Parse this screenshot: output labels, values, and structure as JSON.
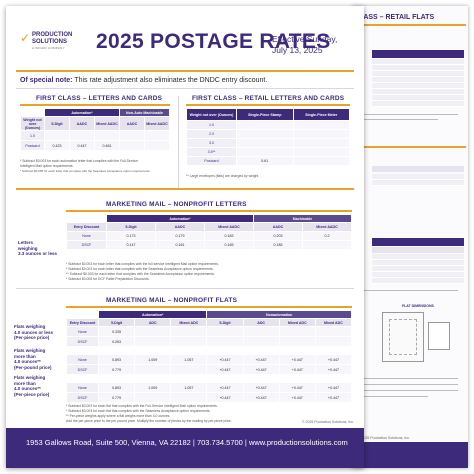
{
  "back_page": {
    "section_title": "CLASS – RETAIL FLATS",
    "flat_dimensions_label": "FLAT DIMENSIONS",
    "copyright": "© 2025 Production Solutions, Inc."
  },
  "logo": {
    "line1": "PRODUCTION",
    "line2": "SOLUTIONS",
    "tagline": "A WIDEN COMPANY"
  },
  "header": {
    "title": "2025 POSTAGE RATES",
    "effective_line1": "Effective Sunday,",
    "effective_line2": "July 13, 2025"
  },
  "note": {
    "label": "Of special note:",
    "text": " This rate adjustment also eliminates the DNDC entry discount."
  },
  "first_class_letters": {
    "title": "FIRST CLASS – LETTERS AND CARDS",
    "group_automation": "Automation*",
    "group_nonauto": "Non-Auto Machinable",
    "col_weight": "Weight not over (Ounces)",
    "columns": [
      "5-Digit",
      "AADC",
      "Mixed AADC",
      "AADC",
      "Mixed AADC"
    ],
    "rows": [
      {
        "label": "1.0",
        "values": [
          "",
          "",
          "",
          "",
          ""
        ]
      },
      {
        "label": "Postcard",
        "values": [
          "0.423",
          "0.447",
          "0.461",
          "",
          ""
        ]
      }
    ],
    "footnote1": "* Subtract $0.003 for each automation letter that complies with the Full-Service",
    "footnote2": "Intelligent Mail option requirements.",
    "footnote3": "* Subtract $0.005 for each letter that complies with the Seamless Acceptance option requirements."
  },
  "first_class_retail": {
    "title": "FIRST CLASS – RETAIL LETTERS AND CARDS",
    "col_weight": "Weight not over (Ounces)",
    "col_stamp": "Single-Piece Stamp",
    "col_meter": "Single-Piece Meter",
    "rows": [
      {
        "label": "1.0",
        "values": [
          "",
          ""
        ]
      },
      {
        "label": "2.0",
        "values": [
          "",
          ""
        ]
      },
      {
        "label": "3.0",
        "values": [
          "",
          ""
        ]
      },
      {
        "label": "3.5**",
        "values": [
          "",
          ""
        ]
      },
      {
        "label": "Postcard",
        "values": [
          "0.61",
          ""
        ]
      }
    ],
    "footnote": "** Large envelopes (flats) are charged by weight"
  },
  "marketing_letters": {
    "title": "MARKETING MAIL – NONPROFIT LETTERS",
    "side_label_1": "Letters",
    "side_label_2": "weighing",
    "side_label_3": "3.3 ounces or less",
    "group_automation": "Automation*",
    "group_machinable": "Machinable",
    "columns": [
      "Entry Discount",
      "5-Digit",
      "AADC",
      "Mixed AADC",
      "AADC",
      "Mixed AADC"
    ],
    "rows": [
      {
        "label": "None",
        "values": [
          "0.173",
          "0.179",
          "0.183",
          "0.203",
          "0.2"
        ]
      },
      {
        "label": "DSCF",
        "values": [
          "0.147",
          "0.161",
          "0.165",
          "0.185",
          ""
        ]
      }
    ],
    "footnote1": "* Subtract $0.003 for each letter that complies with the full service Intelligent Mail option requirements.",
    "footnote2": "* Subtract $0.003 for each letter that complies with the Seamless Acceptance option requirements.",
    "footnote3": "** Subtract $0.003 for each letter that complies with the Seamless Acceptance option requirements.",
    "footnote4": "* Subtract $0.005 for DCF Pallet Preparation Discounts."
  },
  "marketing_flats": {
    "title": "MARKETING MAIL – NONPROFIT FLATS",
    "group_automation": "Automation*",
    "group_nonauto": "Nonautomation",
    "columns": [
      "Entry Discount",
      "5-Digit",
      "ADC",
      "Mixed ADC",
      "5-Digit",
      "ADC",
      "Mixed ADC",
      "Mixed ADC"
    ],
    "blocks": [
      {
        "side": [
          "Flats weighing",
          "4.0 ounces or less",
          "(Per-piece price)"
        ],
        "rows": [
          {
            "label": "None",
            "values": [
              "0.335",
              "",
              "",
              "",
              "",
              "",
              ""
            ]
          },
          {
            "label": "DSCF",
            "values": [
              "0.263",
              "",
              "",
              "",
              "",
              "",
              ""
            ]
          }
        ]
      },
      {
        "side": [
          "Flats weighing",
          "more than",
          "4.0 ounces**",
          "(Per-pound price)"
        ],
        "rows": [
          {
            "label": "None",
            "values": [
              "0.893",
              "1.009",
              "1.057",
              "+0.447",
              "+0.447",
              "+0.447",
              "+0.447"
            ]
          },
          {
            "label": "DSCF",
            "values": [
              "0.779",
              "",
              "",
              "+0.447",
              "+0.447",
              "+0.447",
              "+0.447"
            ]
          }
        ]
      },
      {
        "side": [
          "Flats weighing",
          "more than",
          "4.0 ounces**",
          "(Per-piece price)"
        ],
        "rows": [
          {
            "label": "None",
            "values": [
              "0.893",
              "1.009",
              "1.057",
              "+0.447",
              "+0.447",
              "+0.447",
              "+0.447"
            ]
          },
          {
            "label": "DSCF",
            "values": [
              "0.779",
              "",
              "",
              "+0.447",
              "+0.447",
              "+0.447",
              "+0.447"
            ]
          }
        ]
      }
    ],
    "footnote1": "* Subtract $0.003 for each flat that complies with the Full-Service Intelligent Mail option requirements.",
    "footnote2": "* Subtract $0.003 for each flat that complies with the Seamless Acceptance option requirements.",
    "footnote3": "** Per-piece weights apply where a flat weighs more than 4.0 ounces.",
    "footnote4": "Add the per-piece price to the per-pound price. Multiply the number of pieces by the mailing by per-piece price."
  },
  "footer": {
    "address": "1953 Gallows Road, Suite 500, Vienna, VA 22182 | 703.734.5700 | www.productionsolutions.com",
    "copyright": "© 2025 Production Solutions, Inc."
  },
  "colors": {
    "brand_purple": "#3d2a7a",
    "accent_gold": "#e8a32a"
  }
}
